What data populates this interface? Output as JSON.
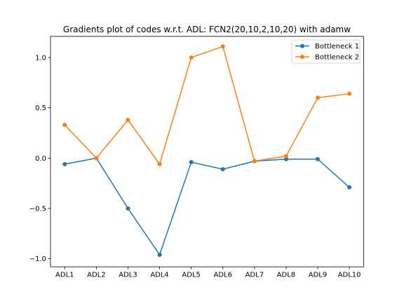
{
  "chart_data": {
    "type": "line",
    "title": "Gradients plot of codes w.r.t. ADL: FCN2(20,10,2,10,20) with adamw",
    "xlabel": "",
    "ylabel": "",
    "categories": [
      "ADL1",
      "ADL2",
      "ADL3",
      "ADL4",
      "ADL5",
      "ADL6",
      "ADL7",
      "ADL8",
      "ADL9",
      "ADL10"
    ],
    "ylim": [
      -1.08,
      1.21
    ],
    "yticks": [
      -1.0,
      -0.5,
      0.0,
      0.5,
      1.0
    ],
    "ytick_labels": [
      "−1.0",
      "−0.5",
      "0.0",
      "0.5",
      "1.0"
    ],
    "grid": false,
    "legend_position": "upper right",
    "series": [
      {
        "name": "Bottleneck 1",
        "color": "#1f77b4",
        "marker": "circle",
        "values": [
          -0.06,
          0.0,
          -0.5,
          -0.96,
          -0.04,
          -0.11,
          -0.03,
          -0.01,
          -0.01,
          -0.29
        ]
      },
      {
        "name": "Bottleneck 2",
        "color": "#ff7f0e",
        "marker": "circle",
        "values": [
          0.33,
          0.0,
          0.38,
          -0.06,
          1.0,
          1.11,
          -0.03,
          0.02,
          0.6,
          0.64
        ]
      }
    ]
  }
}
